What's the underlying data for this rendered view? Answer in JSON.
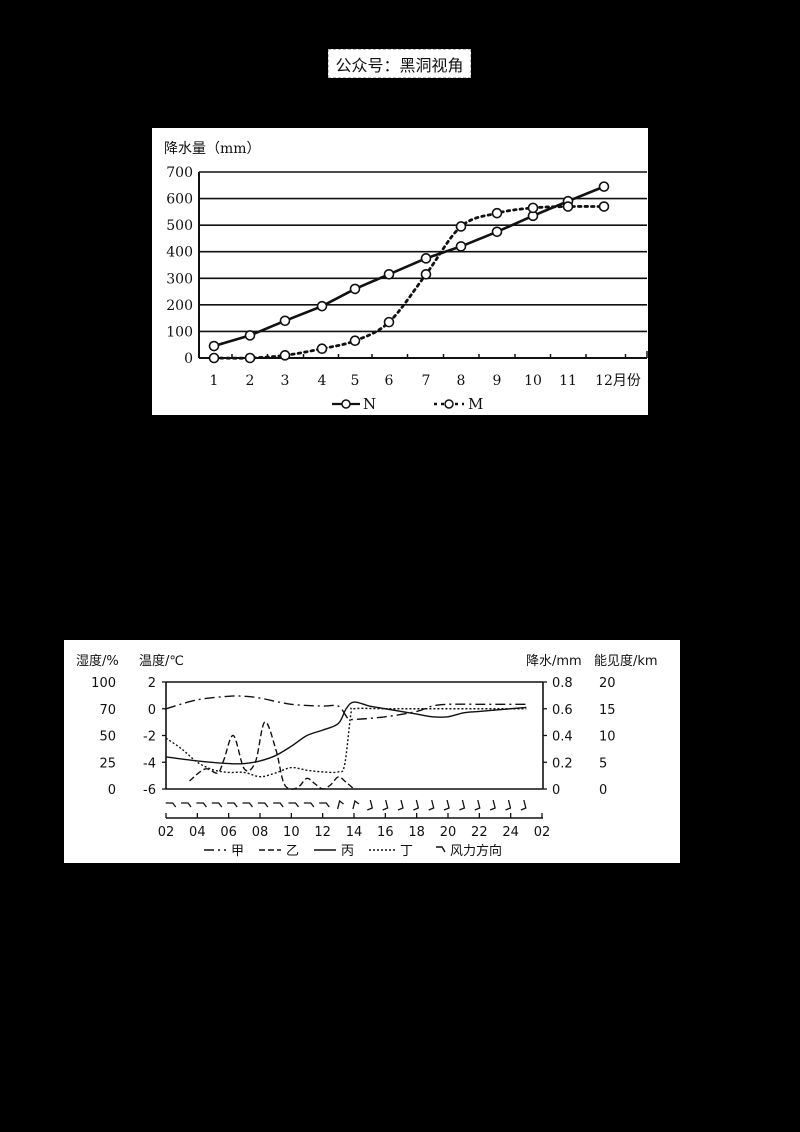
{
  "watermark": {
    "text": "公众号：黑洞视角"
  },
  "chart_data": [
    {
      "type": "line",
      "title": "",
      "ylabel": "降水量（mm）",
      "xlabel": "月份",
      "categories": [
        "1",
        "2",
        "3",
        "4",
        "5",
        "6",
        "7",
        "8",
        "9",
        "10",
        "11",
        "12"
      ],
      "x_tick_labels": [
        "1",
        "2",
        "3",
        "4",
        "5",
        "6",
        "7",
        "8",
        "9",
        "10",
        "11",
        "12月份"
      ],
      "y_ticks": [
        0,
        100,
        200,
        300,
        400,
        500,
        600,
        700
      ],
      "ylim": [
        0,
        700
      ],
      "grid": "horizontal",
      "legend_position": "bottom",
      "series": [
        {
          "name": "N",
          "style": "solid-circle-markers",
          "values": [
            45,
            85,
            140,
            195,
            260,
            315,
            375,
            420,
            475,
            535,
            590,
            645
          ]
        },
        {
          "name": "M",
          "style": "dotted-circle-markers",
          "values": [
            0,
            0,
            10,
            35,
            65,
            135,
            315,
            495,
            545,
            565,
            570,
            570
          ]
        }
      ],
      "legend": [
        {
          "label": "N",
          "style": "solid"
        },
        {
          "label": "M",
          "style": "dotted"
        }
      ]
    },
    {
      "type": "line",
      "title": "",
      "y_axes": [
        {
          "label": "湿度/%",
          "side": "left-outer",
          "ticks": [
            "100",
            "70",
            "50",
            "25",
            "0"
          ]
        },
        {
          "label": "温度/℃",
          "side": "left-inner",
          "ticks": [
            "2",
            "0",
            "-2",
            "-4",
            "-6"
          ],
          "range": [
            -6,
            2
          ]
        },
        {
          "label": "降水/mm",
          "side": "right-inner",
          "ticks": [
            "0.8",
            "0.6",
            "0.4",
            "0.2",
            "0"
          ],
          "range": [
            0,
            0.8
          ]
        },
        {
          "label": "能见度/km",
          "side": "right-outer",
          "ticks": [
            "20",
            "15",
            "10",
            "5",
            "0"
          ],
          "range": [
            0,
            20
          ]
        }
      ],
      "x_tick_labels": [
        "02",
        "04",
        "06",
        "08",
        "10",
        "12",
        "14",
        "16",
        "18",
        "20",
        "22",
        "24",
        "02"
      ],
      "x_hours": [
        2,
        4,
        6,
        8,
        10,
        12,
        14,
        16,
        18,
        20,
        22,
        24,
        26
      ],
      "series": [
        {
          "name": "甲",
          "style": "dash-dot",
          "axis": "湿度/%",
          "x": [
            2,
            4,
            6,
            7,
            8,
            10,
            12,
            13,
            13.6,
            14,
            16,
            18,
            19,
            20,
            22,
            24,
            25
          ],
          "values": [
            70,
            80,
            84,
            84,
            82,
            75,
            73,
            73,
            63,
            62,
            64,
            68,
            73,
            75,
            75,
            75,
            75
          ]
        },
        {
          "name": "乙",
          "style": "dashed",
          "axis": "降水/mm",
          "x": [
            3.5,
            4.5,
            5.3,
            5.7,
            6.3,
            7,
            7.7,
            8.3,
            9,
            9.5,
            10,
            10.5,
            11,
            11.5,
            12,
            12.5,
            13,
            13.5,
            14
          ],
          "values": [
            0.06,
            0.15,
            0.12,
            0.22,
            0.4,
            0.15,
            0.2,
            0.5,
            0.3,
            0.05,
            0,
            0.02,
            0.08,
            0.04,
            0,
            0.03,
            0.09,
            0.05,
            0
          ]
        },
        {
          "name": "丙",
          "style": "solid",
          "axis": "温度/℃",
          "x": [
            2,
            4,
            6,
            7,
            8,
            9,
            10,
            11,
            12,
            13,
            13.5,
            14,
            15,
            16,
            18,
            19,
            20,
            21,
            22,
            24,
            25
          ],
          "values": [
            -3.6,
            -3.9,
            -4.1,
            -4.1,
            -3.9,
            -3.5,
            -2.8,
            -2,
            -1.6,
            -1.1,
            0,
            0.5,
            0.2,
            0,
            -0.4,
            -0.6,
            -0.6,
            -0.3,
            -0.2,
            0,
            0.1
          ]
        },
        {
          "name": "丁",
          "style": "dotted",
          "axis": "能见度/km",
          "x": [
            2,
            3,
            4,
            5,
            6,
            7,
            8,
            9,
            10,
            11,
            12,
            13,
            13.4,
            13.8,
            14,
            16,
            18,
            20,
            22,
            24,
            25
          ],
          "values": [
            9.5,
            7.5,
            5,
            3.6,
            3.1,
            3.1,
            2.3,
            3,
            4,
            3.5,
            3.2,
            3.2,
            4.5,
            14,
            15,
            15,
            15,
            15,
            15,
            15,
            15
          ]
        }
      ],
      "wind_direction_symbols": [
        "⌐",
        "⌐",
        "⌐",
        "⌐",
        "⌐",
        "⌐",
        "⌐",
        "⌐",
        "⌐",
        "⌐",
        "⌐",
        "⌐",
        "⌐",
        "⌐",
        "⌐",
        "⌐",
        "⌐",
        "⌐",
        "⌐",
        "⌐",
        "⌐",
        "⌐",
        "⌐",
        "⌐"
      ],
      "legend": [
        {
          "label": "甲",
          "style": "dash-dot"
        },
        {
          "label": "乙",
          "style": "dashed"
        },
        {
          "label": "丙",
          "style": "solid"
        },
        {
          "label": "丁",
          "style": "dotted"
        },
        {
          "label": "风力方向",
          "style": "wind-barb"
        }
      ]
    }
  ]
}
